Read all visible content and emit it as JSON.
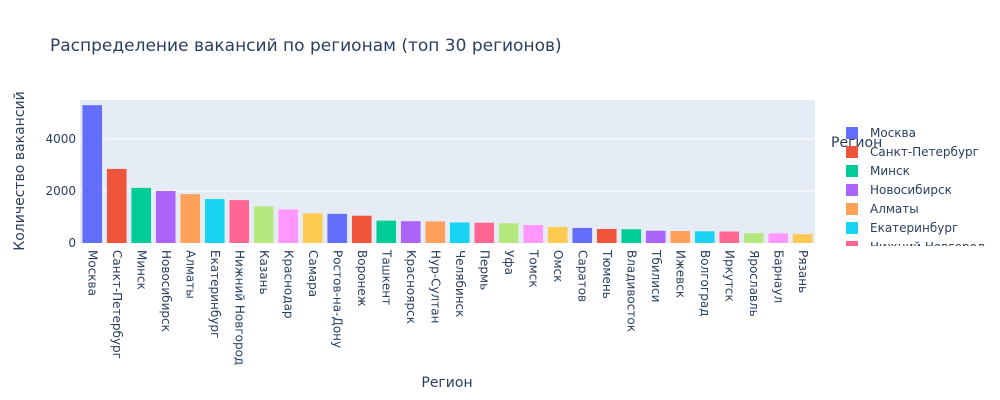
{
  "chart_data": {
    "type": "bar",
    "title": "Распределение вакансий по регионам (топ 30 регионов)",
    "xlabel": "Регион",
    "ylabel": "Количество вакансий",
    "ylim": [
      0,
      5500
    ],
    "yticks": [
      0,
      2000,
      4000
    ],
    "grid": true,
    "legend": {
      "title": "Регион",
      "placement": "right",
      "visible_entries": [
        "Москва",
        "Санкт-Петербург",
        "Минск",
        "Новосибирск",
        "Алматы",
        "Екатеринбург",
        "Нижний Новгород"
      ]
    },
    "categories": [
      "Москва",
      "Санкт-Петербург",
      "Минск",
      "Новосибирск",
      "Алматы",
      "Екатеринбург",
      "Нижний Новгород",
      "Казань",
      "Краснодар",
      "Самара",
      "Ростов-на-Дону",
      "Воронеж",
      "Ташкент",
      "Красноярск",
      "Нур-Султан",
      "Челябинск",
      "Пермь",
      "Уфа",
      "Томск",
      "Омск",
      "Саратов",
      "Тюмень",
      "Владивосток",
      "Тбилиси",
      "Ижевск",
      "Волгоград",
      "Иркутск",
      "Ярославль",
      "Барнаул",
      "Рязань"
    ],
    "values": [
      5300,
      2850,
      2120,
      2000,
      1880,
      1690,
      1650,
      1410,
      1290,
      1140,
      1120,
      1050,
      860,
      840,
      830,
      790,
      780,
      760,
      690,
      620,
      580,
      540,
      530,
      470,
      460,
      450,
      440,
      380,
      370,
      340
    ],
    "colors": [
      "#636efa",
      "#EF553B",
      "#00cc96",
      "#ab63fa",
      "#FFA15A",
      "#19d3f3",
      "#FF6692",
      "#B6E880",
      "#FF97FF",
      "#FECB52"
    ]
  }
}
